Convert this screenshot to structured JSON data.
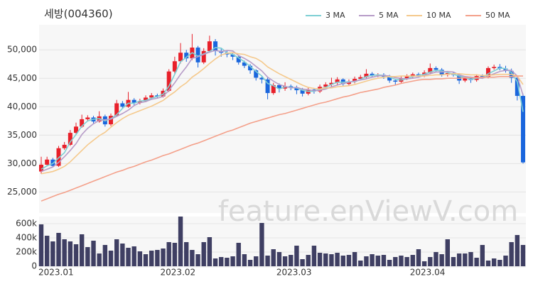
{
  "chart_data": {
    "type": "candlestick",
    "title": "세방(004360)",
    "watermark": "feature.enViewV.com",
    "up_color": "#e8202a",
    "down_color": "#1a66dd",
    "grid": true,
    "categories": [
      "2023.01",
      null,
      null,
      null,
      null,
      null,
      null,
      null,
      null,
      null,
      null,
      null,
      null,
      null,
      null,
      null,
      null,
      null,
      null,
      null,
      null,
      "2023.02",
      null,
      null,
      null,
      null,
      null,
      null,
      null,
      null,
      null,
      null,
      null,
      null,
      null,
      null,
      null,
      null,
      null,
      null,
      null,
      "2023.03",
      null,
      null,
      null,
      null,
      null,
      null,
      null,
      null,
      null,
      null,
      null,
      null,
      null,
      null,
      null,
      null,
      null,
      null,
      null,
      null,
      null,
      null,
      "2023.04",
      null,
      null,
      null,
      null,
      null,
      null,
      null,
      null,
      null,
      null,
      null,
      null,
      null,
      null,
      null,
      null,
      null,
      null,
      null
    ],
    "open": [
      28600,
      29800,
      30700,
      29600,
      32700,
      33300,
      35400,
      36500,
      37800,
      38100,
      37400,
      38300,
      36900,
      38400,
      40600,
      40000,
      41200,
      40700,
      41000,
      41600,
      42000,
      41800,
      42800,
      46200,
      48000,
      49500,
      48500,
      50400,
      47800,
      49800,
      51500,
      49800,
      49500,
      49200,
      48800,
      47800,
      47200,
      46400,
      45100,
      44800,
      42400,
      43800,
      43200,
      43600,
      43400,
      42900,
      42300,
      43000,
      42700,
      43500,
      43900,
      44200,
      44800,
      44000,
      44400,
      44900,
      45200,
      45800,
      45500,
      45600,
      45300,
      44600,
      44400,
      45000,
      45300,
      45700,
      45400,
      46000,
      46800,
      46500,
      45600,
      45900,
      45600,
      44600,
      45000,
      44700,
      45400,
      45200,
      46800,
      47000,
      46700,
      46300,
      45100,
      41900
    ],
    "high": [
      31200,
      31200,
      31000,
      33100,
      33800,
      35900,
      37200,
      38600,
      38500,
      38400,
      39200,
      38600,
      38800,
      41200,
      41000,
      42600,
      41500,
      41400,
      42000,
      42400,
      42300,
      43200,
      46600,
      48800,
      51200,
      50000,
      52800,
      50700,
      50300,
      52500,
      51900,
      50300,
      49900,
      49600,
      49000,
      48100,
      47500,
      46600,
      45500,
      45100,
      44200,
      44100,
      44300,
      43900,
      43700,
      43300,
      43400,
      43300,
      43900,
      44300,
      45100,
      45200,
      45000,
      44800,
      45300,
      45600,
      46600,
      46100,
      45900,
      45900,
      45600,
      44900,
      45300,
      45700,
      46000,
      46000,
      46400,
      47600,
      47100,
      46800,
      46200,
      46100,
      45900,
      45400,
      45300,
      45700,
      45700,
      47100,
      47400,
      47500,
      47200,
      46700,
      45300,
      42300
    ],
    "low": [
      28200,
      29500,
      29300,
      29400,
      32400,
      33100,
      35200,
      36300,
      37500,
      37000,
      37200,
      36500,
      36600,
      38200,
      39600,
      39800,
      40300,
      40400,
      40800,
      41300,
      41500,
      41600,
      42600,
      45800,
      47600,
      47900,
      48200,
      46900,
      47500,
      49500,
      49000,
      48800,
      48700,
      48200,
      47400,
      46800,
      45800,
      44600,
      44100,
      41300,
      42100,
      42500,
      42800,
      42900,
      42200,
      41800,
      42000,
      42300,
      42400,
      43200,
      43500,
      43800,
      43700,
      43700,
      44100,
      44600,
      45000,
      45200,
      45200,
      44900,
      44200,
      43800,
      44100,
      44700,
      45000,
      45100,
      45200,
      45700,
      46200,
      45300,
      45300,
      45300,
      44000,
      44300,
      44200,
      44400,
      44900,
      45000,
      46500,
      46400,
      46000,
      44200,
      41100,
      30000
    ],
    "close": [
      29800,
      30700,
      29600,
      32700,
      33300,
      35400,
      36500,
      37800,
      38100,
      37400,
      38300,
      36900,
      38400,
      40600,
      40000,
      41200,
      40700,
      41000,
      41600,
      42000,
      41800,
      42800,
      46200,
      48000,
      49500,
      48500,
      50400,
      47800,
      49800,
      51500,
      49800,
      49500,
      49200,
      48800,
      47800,
      47200,
      46400,
      45100,
      44800,
      42400,
      43800,
      43200,
      43600,
      43400,
      42900,
      42300,
      43000,
      42700,
      43500,
      43900,
      44200,
      44800,
      44000,
      44400,
      44900,
      45200,
      45800,
      45500,
      45600,
      45300,
      44600,
      44400,
      45000,
      45300,
      45700,
      45400,
      46000,
      46800,
      46500,
      45600,
      45900,
      45600,
      44600,
      45000,
      44700,
      45400,
      45200,
      46800,
      47000,
      46700,
      46300,
      45100,
      41900,
      30200
    ],
    "ylim": [
      21300,
      54400
    ],
    "yticks": [
      {
        "value": 25000,
        "label": "25,000"
      },
      {
        "value": 30000,
        "label": "30,000"
      },
      {
        "value": 35000,
        "label": "35,000"
      },
      {
        "value": 40000,
        "label": "40,000"
      },
      {
        "value": 45000,
        "label": "45,000"
      },
      {
        "value": 50000,
        "label": "50,000"
      }
    ],
    "series": [
      {
        "name": "3 MA",
        "color": "#7ecfd4",
        "values": [
          29000,
          29600,
          30000,
          31000,
          31900,
          33800,
          35100,
          36600,
          37500,
          37800,
          37900,
          37500,
          37900,
          38600,
          39700,
          40600,
          40600,
          41000,
          41100,
          41500,
          41800,
          42200,
          43600,
          45700,
          47900,
          48700,
          49500,
          48900,
          49300,
          49700,
          50400,
          50300,
          49500,
          49200,
          48600,
          47900,
          47100,
          46200,
          45400,
          44100,
          43700,
          43100,
          43500,
          43400,
          43300,
          42900,
          42700,
          42700,
          43100,
          43400,
          43900,
          44300,
          44300,
          44400,
          44400,
          44800,
          45300,
          45500,
          45600,
          45500,
          45200,
          44800,
          44700,
          44900,
          45300,
          45500,
          45700,
          46100,
          46400,
          46300,
          46000,
          45700,
          45400,
          45100,
          44800,
          45000,
          45100,
          45800,
          46300,
          46800,
          46700,
          46000,
          44400,
          39100
        ]
      },
      {
        "name": "5 MA",
        "color": "#b79cc8",
        "values": [
          28600,
          29000,
          29400,
          30200,
          31200,
          32300,
          33500,
          35100,
          36200,
          37000,
          37600,
          37700,
          37800,
          38300,
          38800,
          39400,
          40200,
          40700,
          40900,
          41300,
          41500,
          41800,
          42900,
          44200,
          45700,
          47000,
          48500,
          48800,
          49200,
          49600,
          49900,
          49700,
          49900,
          49800,
          49000,
          48500,
          47900,
          47100,
          46300,
          45200,
          44500,
          43900,
          43600,
          43300,
          43400,
          43100,
          43000,
          42800,
          42900,
          43100,
          43500,
          43800,
          44100,
          44300,
          44500,
          44700,
          44900,
          45200,
          45400,
          45500,
          45400,
          45100,
          45000,
          44900,
          45000,
          45200,
          45500,
          45800,
          46100,
          46100,
          46200,
          46100,
          45600,
          45300,
          45200,
          45100,
          45000,
          45400,
          45800,
          46200,
          46400,
          46400,
          45400,
          42000
        ]
      },
      {
        "name": "10 MA",
        "color": "#f5c98c",
        "values": [
          28200,
          28400,
          28600,
          29000,
          29500,
          30300,
          31300,
          32300,
          33300,
          34100,
          34900,
          35500,
          36400,
          37200,
          37900,
          38500,
          38900,
          39300,
          39700,
          40100,
          40600,
          41100,
          41900,
          42600,
          43500,
          44200,
          45200,
          45900,
          46700,
          47600,
          48400,
          49100,
          49400,
          49500,
          49300,
          49200,
          48800,
          48500,
          47900,
          47000,
          46400,
          45800,
          45300,
          44800,
          44300,
          43800,
          43400,
          43200,
          43100,
          43300,
          43300,
          43500,
          43600,
          43700,
          43900,
          44200,
          44500,
          44800,
          45000,
          45200,
          45300,
          45300,
          45400,
          45400,
          45400,
          45400,
          45400,
          45500,
          45600,
          45600,
          45700,
          45800,
          45800,
          45700,
          45600,
          45600,
          45500,
          45500,
          45600,
          45700,
          45700,
          45700,
          45400,
          43900
        ]
      },
      {
        "name": "50 MA",
        "color": "#f4a08a",
        "values": [
          23400,
          23800,
          24200,
          24600,
          24900,
          25300,
          25700,
          26100,
          26500,
          26900,
          27300,
          27700,
          28100,
          28500,
          28800,
          29200,
          29500,
          29900,
          30300,
          30600,
          31000,
          31400,
          31700,
          32100,
          32500,
          32900,
          33300,
          33600,
          34000,
          34400,
          34800,
          35200,
          35600,
          35900,
          36300,
          36700,
          37100,
          37400,
          37700,
          38000,
          38300,
          38600,
          38800,
          39100,
          39400,
          39700,
          40000,
          40300,
          40600,
          40800,
          41100,
          41400,
          41700,
          41900,
          42200,
          42500,
          42700,
          42900,
          43100,
          43400,
          43600,
          43800,
          44100,
          44300,
          44500,
          44700,
          44800,
          44800,
          44900,
          44900,
          45000,
          45000,
          45000,
          45100,
          45100,
          45100,
          45200,
          45200,
          45200,
          45300,
          45300,
          45300,
          45400,
          45400
        ]
      }
    ],
    "volume": {
      "color": "#3f3f63",
      "ylim": [
        0,
        700000
      ],
      "yticks": [
        0,
        {
          "value": 200000,
          "label": "200k"
        },
        {
          "value": 400000,
          "label": "400k"
        },
        {
          "value": 600000,
          "label": "600k"
        }
      ],
      "values": [
        590000,
        430000,
        350000,
        470000,
        380000,
        350000,
        310000,
        450000,
        270000,
        360000,
        180000,
        300000,
        220000,
        380000,
        320000,
        260000,
        280000,
        210000,
        170000,
        220000,
        230000,
        250000,
        340000,
        330000,
        700000,
        340000,
        230000,
        170000,
        340000,
        410000,
        110000,
        130000,
        120000,
        140000,
        330000,
        170000,
        90000,
        140000,
        610000,
        150000,
        240000,
        200000,
        140000,
        160000,
        290000,
        100000,
        160000,
        290000,
        190000,
        180000,
        170000,
        190000,
        150000,
        160000,
        200000,
        80000,
        140000,
        170000,
        150000,
        160000,
        90000,
        130000,
        150000,
        130000,
        160000,
        240000,
        70000,
        130000,
        200000,
        170000,
        380000,
        130000,
        180000,
        180000,
        200000,
        120000,
        300000,
        80000,
        110000,
        90000,
        150000,
        340000,
        440000,
        300000
      ]
    }
  }
}
